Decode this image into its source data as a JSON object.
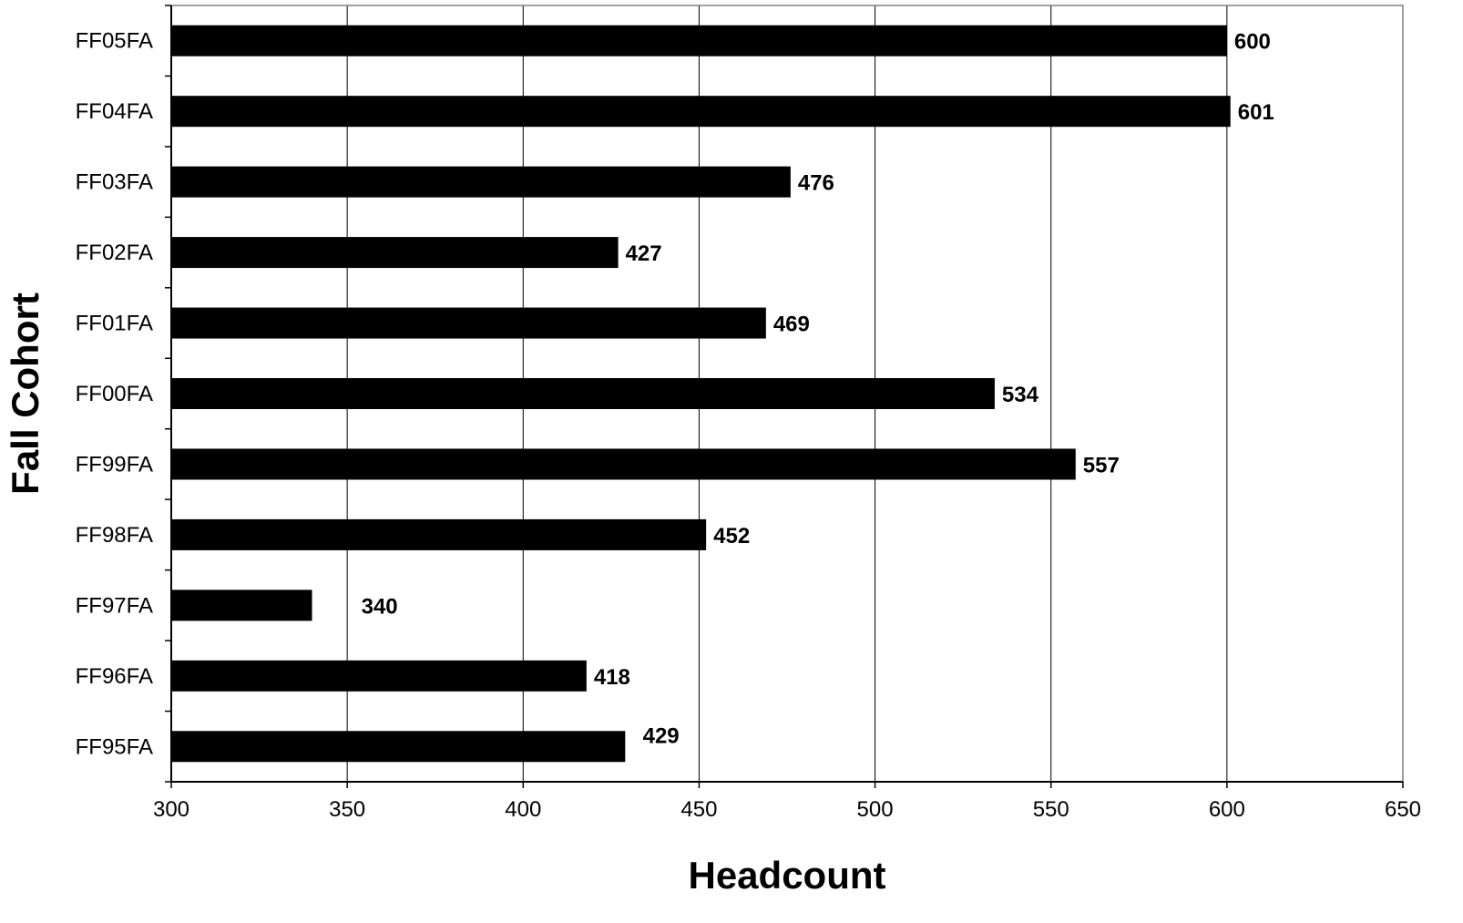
{
  "chart_data": {
    "type": "bar",
    "orientation": "horizontal",
    "title": "",
    "xlabel": "Headcount",
    "ylabel": "Fall Cohort",
    "xlim": [
      300,
      650
    ],
    "x_ticks": [
      300,
      350,
      400,
      450,
      500,
      550,
      600,
      650
    ],
    "categories": [
      "FF05FA",
      "FF04FA",
      "FF03FA",
      "FF02FA",
      "FF01FA",
      "FF00FA",
      "FF99FA",
      "FF98FA",
      "FF97FA",
      "FF96FA",
      "FF95FA"
    ],
    "values": [
      600,
      601,
      476,
      427,
      469,
      534,
      557,
      452,
      340,
      418,
      429
    ],
    "bar_color": "#000000",
    "grid": "vertical",
    "legend": "none"
  }
}
